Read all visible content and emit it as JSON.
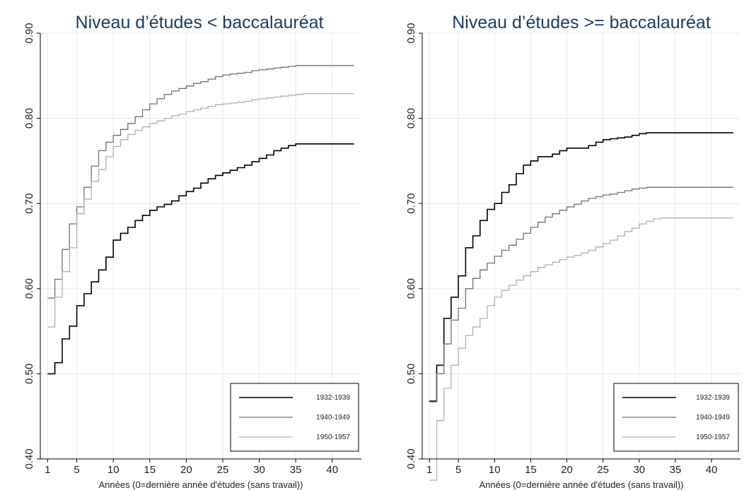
{
  "chart_data": [
    {
      "type": "line",
      "title": "Niveau d’études < baccalauréat",
      "xlabel": "Années (0=dernière année d'études (sans travail))",
      "ylabel": "",
      "xlim": [
        0,
        44
      ],
      "ylim": [
        0.4,
        0.9
      ],
      "xticks": [
        1,
        5,
        10,
        15,
        20,
        25,
        30,
        35,
        40
      ],
      "yticks": [
        0.4,
        0.5,
        0.6,
        0.7,
        0.8,
        0.9
      ],
      "ytick_labels": [
        "0.40",
        "0.50",
        "0.60",
        "0.70",
        "0.80",
        "0.90"
      ],
      "grid": true,
      "legend_position": "bottom-right",
      "series": [
        {
          "name": "1932-1939",
          "color": "#000000",
          "x": [
            1,
            2,
            3,
            4,
            5,
            6,
            7,
            8,
            9,
            10,
            11,
            12,
            13,
            14,
            15,
            16,
            17,
            18,
            19,
            20,
            21,
            22,
            23,
            24,
            25,
            26,
            27,
            28,
            29,
            30,
            31,
            32,
            33,
            34,
            35,
            36,
            37,
            38,
            39,
            40,
            41,
            42,
            43
          ],
          "y": [
            0.5,
            0.513,
            0.541,
            0.556,
            0.58,
            0.594,
            0.608,
            0.622,
            0.637,
            0.657,
            0.665,
            0.672,
            0.68,
            0.686,
            0.692,
            0.696,
            0.699,
            0.703,
            0.709,
            0.714,
            0.718,
            0.724,
            0.729,
            0.733,
            0.736,
            0.739,
            0.742,
            0.745,
            0.749,
            0.753,
            0.757,
            0.762,
            0.765,
            0.768,
            0.77,
            0.77,
            0.77,
            0.77,
            0.77,
            0.77,
            0.77,
            0.77,
            0.77
          ]
        },
        {
          "name": "1940-1949",
          "color": "#707070",
          "x": [
            1,
            2,
            3,
            4,
            5,
            6,
            7,
            8,
            9,
            10,
            11,
            12,
            13,
            14,
            15,
            16,
            17,
            18,
            19,
            20,
            21,
            22,
            23,
            24,
            25,
            26,
            27,
            28,
            29,
            30,
            31,
            32,
            33,
            34,
            35,
            36,
            37,
            38,
            39,
            40,
            41,
            42,
            43
          ],
          "y": [
            0.589,
            0.611,
            0.646,
            0.676,
            0.696,
            0.719,
            0.744,
            0.762,
            0.772,
            0.78,
            0.787,
            0.794,
            0.802,
            0.81,
            0.817,
            0.823,
            0.828,
            0.832,
            0.835,
            0.838,
            0.841,
            0.843,
            0.846,
            0.849,
            0.851,
            0.852,
            0.853,
            0.854,
            0.856,
            0.857,
            0.858,
            0.859,
            0.86,
            0.861,
            0.862,
            0.862,
            0.862,
            0.862,
            0.862,
            0.862,
            0.862,
            0.862,
            0.862
          ]
        },
        {
          "name": "1950-1957",
          "color": "#b0b0b0",
          "x": [
            1,
            2,
            3,
            4,
            5,
            6,
            7,
            8,
            9,
            10,
            11,
            12,
            13,
            14,
            15,
            16,
            17,
            18,
            19,
            20,
            21,
            22,
            23,
            24,
            25,
            26,
            27,
            28,
            29,
            30,
            31,
            32,
            33,
            34,
            35,
            36,
            37,
            38,
            39,
            40,
            41,
            42,
            43
          ],
          "y": [
            0.555,
            0.59,
            0.62,
            0.648,
            0.688,
            0.705,
            0.726,
            0.74,
            0.755,
            0.767,
            0.775,
            0.781,
            0.786,
            0.79,
            0.794,
            0.797,
            0.8,
            0.803,
            0.805,
            0.808,
            0.81,
            0.812,
            0.814,
            0.816,
            0.817,
            0.818,
            0.819,
            0.82,
            0.822,
            0.823,
            0.824,
            0.825,
            0.826,
            0.827,
            0.828,
            0.829,
            0.829,
            0.829,
            0.829,
            0.829,
            0.829,
            0.829,
            0.829
          ]
        }
      ]
    },
    {
      "type": "line",
      "title": "Niveau d’études >= baccalauréat",
      "xlabel": "Années (0=dernière année d'études (sans travail))",
      "ylabel": "",
      "xlim": [
        0,
        44
      ],
      "ylim": [
        0.4,
        0.9
      ],
      "xticks": [
        1,
        5,
        10,
        15,
        20,
        25,
        30,
        35,
        40
      ],
      "yticks": [
        0.4,
        0.5,
        0.6,
        0.7,
        0.8,
        0.9
      ],
      "ytick_labels": [
        "0.40",
        "0.50",
        "0.60",
        "0.70",
        "0.80",
        "0.90"
      ],
      "grid": true,
      "legend_position": "bottom-right",
      "series": [
        {
          "name": "1932-1939",
          "color": "#000000",
          "x": [
            1,
            2,
            3,
            4,
            5,
            6,
            7,
            8,
            9,
            10,
            11,
            12,
            13,
            14,
            15,
            16,
            17,
            18,
            19,
            20,
            21,
            22,
            23,
            24,
            25,
            26,
            27,
            28,
            29,
            30,
            31,
            32,
            33,
            34,
            35,
            36,
            37,
            38,
            39,
            40,
            41,
            42,
            43
          ],
          "y": [
            0.468,
            0.51,
            0.565,
            0.59,
            0.615,
            0.648,
            0.662,
            0.68,
            0.693,
            0.7,
            0.713,
            0.722,
            0.735,
            0.745,
            0.75,
            0.755,
            0.755,
            0.758,
            0.762,
            0.765,
            0.765,
            0.765,
            0.768,
            0.772,
            0.775,
            0.776,
            0.777,
            0.778,
            0.78,
            0.782,
            0.783,
            0.783,
            0.783,
            0.783,
            0.783,
            0.783,
            0.783,
            0.783,
            0.783,
            0.783,
            0.783,
            0.783,
            0.783
          ]
        },
        {
          "name": "1940-1949",
          "color": "#707070",
          "x": [
            1,
            2,
            3,
            4,
            5,
            6,
            7,
            8,
            9,
            10,
            11,
            12,
            13,
            14,
            15,
            16,
            17,
            18,
            19,
            20,
            21,
            22,
            23,
            24,
            25,
            26,
            27,
            28,
            29,
            30,
            31,
            32,
            33,
            34,
            35,
            36,
            37,
            38,
            39,
            40,
            41,
            42,
            43
          ],
          "y": [
            0.467,
            0.5,
            0.535,
            0.563,
            0.577,
            0.6,
            0.612,
            0.622,
            0.63,
            0.638,
            0.645,
            0.651,
            0.658,
            0.665,
            0.672,
            0.678,
            0.684,
            0.688,
            0.692,
            0.696,
            0.699,
            0.703,
            0.706,
            0.708,
            0.71,
            0.711,
            0.713,
            0.715,
            0.717,
            0.718,
            0.719,
            0.719,
            0.719,
            0.719,
            0.719,
            0.719,
            0.719,
            0.719,
            0.719,
            0.719,
            0.719,
            0.719,
            0.719
          ]
        },
        {
          "name": "1950-1957",
          "color": "#b0b0b0",
          "x": [
            1,
            2,
            3,
            4,
            5,
            6,
            7,
            8,
            9,
            10,
            11,
            12,
            13,
            14,
            15,
            16,
            17,
            18,
            19,
            20,
            21,
            22,
            23,
            24,
            25,
            26,
            27,
            28,
            29,
            30,
            31,
            32,
            33,
            34,
            35,
            36,
            37,
            38,
            39,
            40,
            41,
            42,
            43
          ],
          "y": [
            0.375,
            0.445,
            0.483,
            0.51,
            0.53,
            0.545,
            0.555,
            0.565,
            0.58,
            0.59,
            0.598,
            0.604,
            0.61,
            0.615,
            0.62,
            0.625,
            0.628,
            0.631,
            0.634,
            0.637,
            0.639,
            0.642,
            0.645,
            0.649,
            0.653,
            0.657,
            0.662,
            0.667,
            0.671,
            0.676,
            0.679,
            0.682,
            0.683,
            0.683,
            0.683,
            0.683,
            0.683,
            0.683,
            0.683,
            0.683,
            0.683,
            0.683,
            0.683
          ]
        }
      ]
    }
  ]
}
